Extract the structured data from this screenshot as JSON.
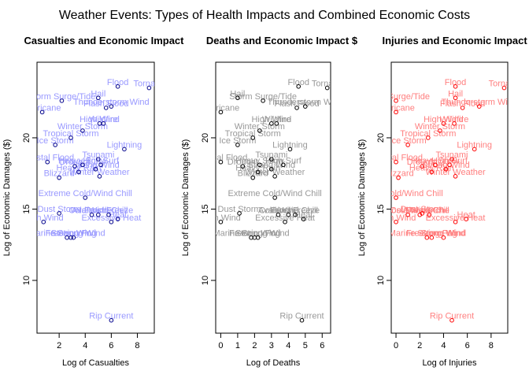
{
  "title": "Weather Events: Types of Health Impacts and Combined Economic Costs",
  "chart_data": [
    {
      "type": "scatter",
      "title": "Casualties and Economic Impact",
      "xlabel": "Log of Casualties",
      "ylabel": "Log of Economic Damages ($)",
      "xlim": [
        0.3,
        9.3
      ],
      "ylim": [
        6.3,
        25.3
      ],
      "xticks": [
        2,
        4,
        6,
        8
      ],
      "yticks": [
        10,
        15,
        20
      ],
      "point_color": "#00008b",
      "label_color": "#9999ff",
      "points": [
        {
          "label": "Flood",
          "x": 6.5,
          "y": 23.6
        },
        {
          "label": "Tornado",
          "x": 8.9,
          "y": 23.5
        },
        {
          "label": "Hail",
          "x": 5.0,
          "y": 22.8
        },
        {
          "label": "Storm Surge/Tide",
          "x": 2.2,
          "y": 22.6
        },
        {
          "label": "Flash Flood",
          "x": 5.6,
          "y": 22.1
        },
        {
          "label": "Thunderstorm Wind",
          "x": 6.0,
          "y": 22.2
        },
        {
          "label": "Hurricane",
          "x": 0.7,
          "y": 21.8
        },
        {
          "label": "High Wind",
          "x": 5.1,
          "y": 21.0
        },
        {
          "label": "Wildfire",
          "x": 5.4,
          "y": 21.0
        },
        {
          "label": "Winter Storm",
          "x": 3.8,
          "y": 20.5
        },
        {
          "label": "Tropical Storm",
          "x": 2.9,
          "y": 20.0
        },
        {
          "label": "Ice Storm",
          "x": 1.7,
          "y": 19.5
        },
        {
          "label": "Lightning",
          "x": 7.0,
          "y": 19.2
        },
        {
          "label": "Tsunami",
          "x": 5.0,
          "y": 18.5
        },
        {
          "label": "Coastal Flood",
          "x": 1.1,
          "y": 18.3
        },
        {
          "label": "High Surf",
          "x": 5.2,
          "y": 18.1
        },
        {
          "label": "Heavy Snow",
          "x": 3.8,
          "y": 18.1
        },
        {
          "label": "Drought",
          "x": 3.2,
          "y": 18.0
        },
        {
          "label": "Strong Wind",
          "x": 4.8,
          "y": 17.8
        },
        {
          "label": "Heavy Rain",
          "x": 3.5,
          "y": 17.6
        },
        {
          "label": "Blizzard",
          "x": 2.0,
          "y": 17.2
        },
        {
          "label": "Winter Weather",
          "x": 5.1,
          "y": 17.3
        },
        {
          "label": "Extreme Cold/Wind Chill",
          "x": 4.0,
          "y": 15.8
        },
        {
          "label": "Dust Storm",
          "x": 2.0,
          "y": 14.7
        },
        {
          "label": "Avalanche",
          "x": 4.5,
          "y": 14.6
        },
        {
          "label": "Cold/Wind Chill",
          "x": 5.0,
          "y": 14.6
        },
        {
          "label": "Frost/Freeze",
          "x": 5.8,
          "y": 14.6
        },
        {
          "label": "High Wind",
          "x": 0.8,
          "y": 14.1
        },
        {
          "label": "Excessive Heat",
          "x": 6.0,
          "y": 14.1
        },
        {
          "label": "Heat",
          "x": 6.5,
          "y": 14.3
        },
        {
          "label": "Marine Strong Wind",
          "x": 2.6,
          "y": 13.0
        },
        {
          "label": "Freezing Fog",
          "x": 2.9,
          "y": 13.0
        },
        {
          "label": "Storm Wind",
          "x": 3.1,
          "y": 13.0
        },
        {
          "label": "Rip Current",
          "x": 6.0,
          "y": 7.2
        }
      ]
    },
    {
      "type": "scatter",
      "title": "Deaths and Economic Impact $",
      "xlabel": "Log of Deaths",
      "ylabel": "Log of Economic Damages ($)",
      "xlim": [
        -0.3,
        6.5
      ],
      "ylim": [
        6.3,
        25.3
      ],
      "xticks": [
        0,
        1,
        2,
        3,
        4,
        5,
        6
      ],
      "yticks": [
        10,
        15,
        20
      ],
      "point_color": "#000000",
      "label_color": "#999999",
      "points": [
        {
          "label": "Flood",
          "x": 4.6,
          "y": 23.6
        },
        {
          "label": "Tornado",
          "x": 6.3,
          "y": 23.5
        },
        {
          "label": "Hail",
          "x": 1.0,
          "y": 22.8
        },
        {
          "label": "Storm Surge/Tide",
          "x": 2.5,
          "y": 22.6
        },
        {
          "label": "Flash Flood",
          "x": 4.5,
          "y": 22.1
        },
        {
          "label": "Thunderstorm Wind",
          "x": 5.0,
          "y": 22.2
        },
        {
          "label": "Hurricane",
          "x": 0.0,
          "y": 21.8
        },
        {
          "label": "High Wind",
          "x": 3.0,
          "y": 21.0
        },
        {
          "label": "Wildfire",
          "x": 3.3,
          "y": 21.0
        },
        {
          "label": "Winter Storm",
          "x": 2.3,
          "y": 20.5
        },
        {
          "label": "Tropical Storm",
          "x": 1.9,
          "y": 20.0
        },
        {
          "label": "Ice Storm",
          "x": 1.0,
          "y": 19.5
        },
        {
          "label": "Lightning",
          "x": 4.1,
          "y": 19.2
        },
        {
          "label": "Tsunami",
          "x": 3.0,
          "y": 18.5
        },
        {
          "label": "Coastal Flood",
          "x": 0.0,
          "y": 18.3
        },
        {
          "label": "High Surf",
          "x": 3.7,
          "y": 18.1
        },
        {
          "label": "Heavy Snow",
          "x": 2.3,
          "y": 18.1
        },
        {
          "label": "Drought",
          "x": 1.3,
          "y": 18.0
        },
        {
          "label": "Strong Wind",
          "x": 3.0,
          "y": 17.8
        },
        {
          "label": "Heavy Rain",
          "x": 2.2,
          "y": 17.6
        },
        {
          "label": "Blizzard",
          "x": 1.9,
          "y": 17.2
        },
        {
          "label": "Winter Weather",
          "x": 3.2,
          "y": 17.3
        },
        {
          "label": "Extreme Cold/Wind Chill",
          "x": 3.2,
          "y": 15.8
        },
        {
          "label": "Dust Storm",
          "x": 1.1,
          "y": 14.7
        },
        {
          "label": "Avalanche",
          "x": 3.4,
          "y": 14.6
        },
        {
          "label": "Cold/Wind Chill",
          "x": 4.0,
          "y": 14.6
        },
        {
          "label": "Frost/Freeze",
          "x": 4.4,
          "y": 14.6
        },
        {
          "label": "High Wind",
          "x": 0.0,
          "y": 14.1
        },
        {
          "label": "Excessive Heat",
          "x": 3.8,
          "y": 14.1
        },
        {
          "label": "Heat",
          "x": 4.9,
          "y": 14.3
        },
        {
          "label": "Marine Strong Wind",
          "x": 1.8,
          "y": 13.0
        },
        {
          "label": "Freezing Fog",
          "x": 2.0,
          "y": 13.0
        },
        {
          "label": "Storm Wind",
          "x": 2.2,
          "y": 13.0
        },
        {
          "label": "Rip Current",
          "x": 4.8,
          "y": 7.2
        }
      ]
    },
    {
      "type": "scatter",
      "title": "Injuries and Economic Impact $",
      "xlabel": "Log of Injuries",
      "ylabel": "Log of Economic Damages ($)",
      "xlim": [
        -0.4,
        9.4
      ],
      "ylim": [
        6.3,
        25.3
      ],
      "xticks": [
        0,
        2,
        4,
        6,
        8
      ],
      "yticks": [
        10,
        15,
        20
      ],
      "point_color": "#ff0000",
      "label_color": "#ff7f7f",
      "points": [
        {
          "label": "Flood",
          "x": 5.0,
          "y": 23.6
        },
        {
          "label": "Tornado",
          "x": 9.1,
          "y": 23.5
        },
        {
          "label": "Hail",
          "x": 5.0,
          "y": 22.8
        },
        {
          "label": "Storm Surge/Tide",
          "x": 0.0,
          "y": 22.6
        },
        {
          "label": "Flash Flood",
          "x": 5.6,
          "y": 22.1
        },
        {
          "label": "Thunderstorm Wind",
          "x": 7.0,
          "y": 22.2
        },
        {
          "label": "Hurricane",
          "x": 0.0,
          "y": 21.8
        },
        {
          "label": "High Wind",
          "x": 4.0,
          "y": 21.0
        },
        {
          "label": "Wildfire",
          "x": 4.9,
          "y": 21.0
        },
        {
          "label": "Winter Storm",
          "x": 3.7,
          "y": 20.5
        },
        {
          "label": "Tropical Storm",
          "x": 2.7,
          "y": 20.0
        },
        {
          "label": "Ice Storm",
          "x": 1.0,
          "y": 19.5
        },
        {
          "label": "Lightning",
          "x": 6.6,
          "y": 19.2
        },
        {
          "label": "Tsunami",
          "x": 4.7,
          "y": 18.5
        },
        {
          "label": "Coastal Flood",
          "x": 0.0,
          "y": 18.3
        },
        {
          "label": "High Surf",
          "x": 4.5,
          "y": 18.1
        },
        {
          "label": "Heavy Snow",
          "x": 3.3,
          "y": 18.1
        },
        {
          "label": "Drought",
          "x": 2.2,
          "y": 18.0
        },
        {
          "label": "Strong Wind",
          "x": 4.2,
          "y": 17.8
        },
        {
          "label": "Heavy Rain",
          "x": 3.0,
          "y": 17.6
        },
        {
          "label": "Blizzard",
          "x": 0.2,
          "y": 17.2
        },
        {
          "label": "Winter Weather",
          "x": 5.0,
          "y": 17.3
        },
        {
          "label": "Extreme Cold/Wind Chill",
          "x": 0.0,
          "y": 15.8
        },
        {
          "label": "Dust Storm",
          "x": 2.2,
          "y": 14.7
        },
        {
          "label": "Avalanche",
          "x": 2.8,
          "y": 14.6
        },
        {
          "label": "Cold/Wind Chill",
          "x": 2.0,
          "y": 14.6
        },
        {
          "label": "Frost/Freeze",
          "x": 1.0,
          "y": 14.6
        },
        {
          "label": "High Wind",
          "x": 0.0,
          "y": 14.1
        },
        {
          "label": "Excessive Heat",
          "x": 5.0,
          "y": 14.1
        },
        {
          "label": "Heat",
          "x": 5.9,
          "y": 14.3
        },
        {
          "label": "Marine Strong Wind",
          "x": 2.6,
          "y": 13.0
        },
        {
          "label": "Freezing Fog",
          "x": 3.0,
          "y": 13.0
        },
        {
          "label": "Storm Wind",
          "x": 4.0,
          "y": 13.0
        },
        {
          "label": "Rip Current",
          "x": 4.7,
          "y": 7.2
        }
      ]
    }
  ]
}
